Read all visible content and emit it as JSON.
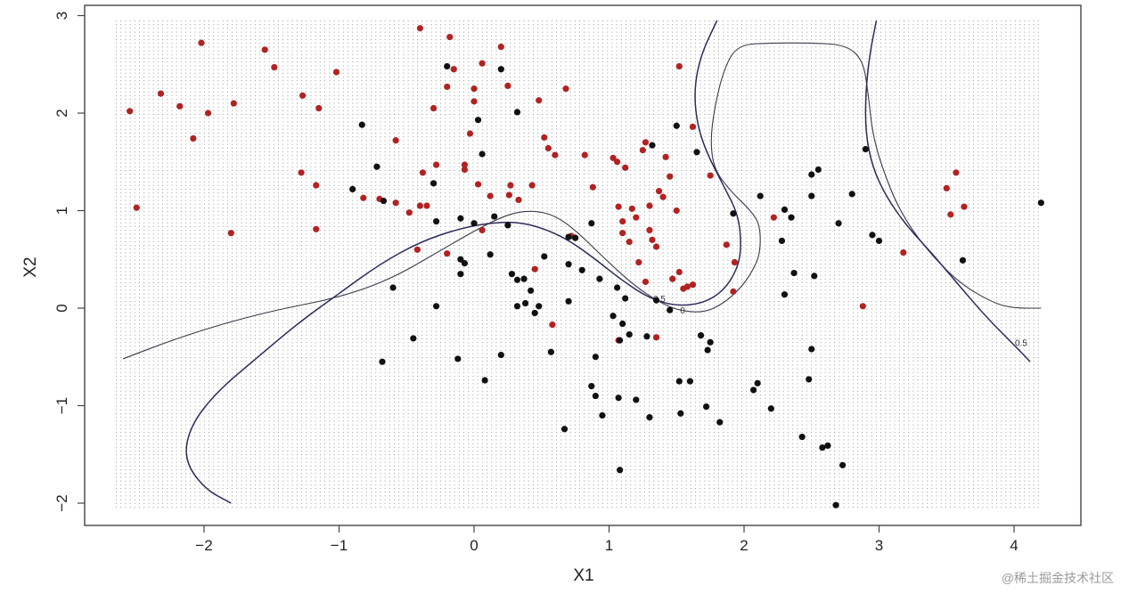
{
  "chart_data": {
    "type": "scatter",
    "title": "",
    "xlabel": "X1",
    "ylabel": "X2",
    "xlim": [
      -2.9,
      4.5
    ],
    "ylim": [
      -2.2,
      3.05
    ],
    "x_ticks": [
      -2,
      -1,
      0,
      1,
      2,
      3,
      4
    ],
    "y_ticks": [
      -2,
      -1,
      0,
      1,
      2,
      3
    ],
    "x_tick_labels": [
      "−2",
      "−1",
      "0",
      "1",
      "2",
      "3",
      "4"
    ],
    "y_tick_labels": [
      "−2",
      "−1",
      "0",
      "1",
      "2",
      "3"
    ],
    "grid": "dotted background grid over x -2.6..4.2, y -2.05..2.95",
    "grid_extent": {
      "x": [
        -2.65,
        4.2
      ],
      "y": [
        -2.05,
        2.95
      ]
    },
    "colors": {
      "class_red": "#b22222",
      "class_black": "#111111",
      "contour_main": "#2b2b5a",
      "contour_secondary": "#3a3a4a",
      "grid_dots": "#9a9a9a"
    },
    "series": [
      {
        "color": "#b22222",
        "points": [
          [
            -2.55,
            2.02
          ],
          [
            -2.5,
            1.03
          ],
          [
            -2.32,
            2.2
          ],
          [
            -2.18,
            2.07
          ],
          [
            -2.08,
            1.74
          ],
          [
            -2.02,
            2.72
          ],
          [
            -1.97,
            2.0
          ],
          [
            -1.8,
            0.77
          ],
          [
            -1.78,
            2.1
          ],
          [
            -1.55,
            2.65
          ],
          [
            -1.48,
            2.47
          ],
          [
            -1.28,
            1.39
          ],
          [
            -1.27,
            2.18
          ],
          [
            -1.17,
            1.26
          ],
          [
            -1.15,
            2.05
          ],
          [
            -1.02,
            2.42
          ],
          [
            -1.17,
            0.81
          ],
          [
            -0.82,
            1.13
          ],
          [
            -0.7,
            1.12
          ],
          [
            -0.58,
            1.72
          ],
          [
            -0.58,
            1.08
          ],
          [
            -0.48,
            0.98
          ],
          [
            -0.42,
            0.6
          ],
          [
            -0.4,
            1.05
          ],
          [
            -0.38,
            1.39
          ],
          [
            -0.35,
            1.05
          ],
          [
            -0.3,
            2.05
          ],
          [
            -0.28,
            1.47
          ],
          [
            -0.4,
            2.87
          ],
          [
            -0.2,
            2.27
          ],
          [
            -0.18,
            2.78
          ],
          [
            -0.15,
            2.45
          ],
          [
            -0.2,
            0.56
          ],
          [
            -0.07,
            1.47
          ],
          [
            -0.07,
            1.42
          ],
          [
            -0.03,
            1.79
          ],
          [
            0.0,
            2.25
          ],
          [
            0.0,
            2.12
          ],
          [
            0.03,
            1.27
          ],
          [
            0.06,
            2.51
          ],
          [
            0.12,
            1.15
          ],
          [
            0.06,
            0.8
          ],
          [
            0.2,
            2.68
          ],
          [
            0.25,
            2.28
          ],
          [
            0.27,
            1.26
          ],
          [
            0.26,
            1.16
          ],
          [
            0.33,
            1.11
          ],
          [
            0.43,
            1.26
          ],
          [
            0.48,
            2.13
          ],
          [
            0.52,
            1.75
          ],
          [
            0.55,
            1.64
          ],
          [
            0.6,
            1.57
          ],
          [
            0.68,
            2.25
          ],
          [
            0.45,
            0.4
          ],
          [
            0.58,
            -0.17
          ],
          [
            0.72,
            0.74
          ],
          [
            0.82,
            1.57
          ],
          [
            0.88,
            1.24
          ],
          [
            1.03,
            1.54
          ],
          [
            1.06,
            1.5
          ],
          [
            1.07,
            1.04
          ],
          [
            1.1,
            0.77
          ],
          [
            1.12,
            1.44
          ],
          [
            1.15,
            0.68
          ],
          [
            1.1,
            0.89
          ],
          [
            1.17,
            1.02
          ],
          [
            1.2,
            0.93
          ],
          [
            1.25,
            1.62
          ],
          [
            1.27,
            1.7
          ],
          [
            1.3,
            1.05
          ],
          [
            1.3,
            0.8
          ],
          [
            1.32,
            0.7
          ],
          [
            1.35,
            0.63
          ],
          [
            1.37,
            1.2
          ],
          [
            1.4,
            1.14
          ],
          [
            1.42,
            1.55
          ],
          [
            1.45,
            1.35
          ],
          [
            1.47,
            0.3
          ],
          [
            1.5,
            1.0
          ],
          [
            1.52,
            2.48
          ],
          [
            1.52,
            0.37
          ],
          [
            1.55,
            0.2
          ],
          [
            1.58,
            0.22
          ],
          [
            1.62,
            0.24
          ],
          [
            1.62,
            1.86
          ],
          [
            1.22,
            0.47
          ],
          [
            1.27,
            0.27
          ],
          [
            1.35,
            -0.3
          ],
          [
            1.07,
            -0.33
          ],
          [
            1.75,
            1.36
          ],
          [
            1.87,
            0.65
          ],
          [
            1.93,
            0.47
          ],
          [
            1.92,
            0.17
          ],
          [
            2.22,
            0.93
          ],
          [
            2.88,
            0.02
          ],
          [
            3.18,
            0.57
          ],
          [
            3.5,
            1.23
          ],
          [
            3.53,
            0.96
          ],
          [
            3.57,
            1.39
          ],
          [
            3.63,
            1.04
          ]
        ]
      },
      {
        "color": "#111111",
        "points": [
          [
            -0.9,
            1.22
          ],
          [
            -0.83,
            1.88
          ],
          [
            -0.72,
            1.45
          ],
          [
            -0.68,
            -0.55
          ],
          [
            -0.67,
            1.1
          ],
          [
            -0.6,
            0.21
          ],
          [
            -0.45,
            -0.31
          ],
          [
            -0.3,
            1.28
          ],
          [
            -0.28,
            0.89
          ],
          [
            -0.28,
            0.02
          ],
          [
            -0.2,
            2.48
          ],
          [
            -0.12,
            -0.52
          ],
          [
            -0.1,
            0.92
          ],
          [
            -0.1,
            0.35
          ],
          [
            -0.1,
            0.5
          ],
          [
            -0.07,
            0.46
          ],
          [
            0.0,
            0.87
          ],
          [
            0.03,
            1.93
          ],
          [
            0.06,
            1.58
          ],
          [
            0.08,
            -0.74
          ],
          [
            0.12,
            0.55
          ],
          [
            0.15,
            0.94
          ],
          [
            0.2,
            -0.48
          ],
          [
            0.2,
            2.45
          ],
          [
            0.25,
            0.85
          ],
          [
            0.28,
            0.35
          ],
          [
            0.32,
            0.29
          ],
          [
            0.32,
            2.01
          ],
          [
            0.32,
            0.02
          ],
          [
            0.37,
            0.3
          ],
          [
            0.38,
            0.05
          ],
          [
            0.42,
            0.18
          ],
          [
            0.45,
            -0.05
          ],
          [
            0.48,
            0.02
          ],
          [
            0.52,
            0.53
          ],
          [
            0.57,
            -0.45
          ],
          [
            0.67,
            -1.24
          ],
          [
            0.7,
            0.73
          ],
          [
            0.7,
            0.45
          ],
          [
            0.7,
            0.07
          ],
          [
            0.75,
            0.72
          ],
          [
            0.8,
            0.39
          ],
          [
            0.87,
            0.87
          ],
          [
            0.87,
            -0.8
          ],
          [
            0.9,
            -0.5
          ],
          [
            0.9,
            -0.9
          ],
          [
            0.93,
            0.3
          ],
          [
            0.95,
            -1.1
          ],
          [
            1.03,
            -0.08
          ],
          [
            1.06,
            0.21
          ],
          [
            1.07,
            -0.92
          ],
          [
            1.08,
            -0.33
          ],
          [
            1.08,
            -1.66
          ],
          [
            1.1,
            -0.16
          ],
          [
            1.12,
            0.1
          ],
          [
            1.15,
            -0.27
          ],
          [
            1.2,
            -0.94
          ],
          [
            1.28,
            -0.29
          ],
          [
            1.3,
            -1.12
          ],
          [
            1.32,
            1.67
          ],
          [
            1.35,
            0.08
          ],
          [
            1.45,
            -0.02
          ],
          [
            1.5,
            1.87
          ],
          [
            1.52,
            -0.75
          ],
          [
            1.53,
            -1.08
          ],
          [
            1.6,
            -0.75
          ],
          [
            1.65,
            1.6
          ],
          [
            1.68,
            -0.28
          ],
          [
            1.72,
            -1.01
          ],
          [
            1.73,
            -0.43
          ],
          [
            1.75,
            -0.35
          ],
          [
            1.82,
            -1.17
          ],
          [
            1.92,
            0.97
          ],
          [
            2.07,
            -0.84
          ],
          [
            2.1,
            -0.77
          ],
          [
            2.12,
            1.15
          ],
          [
            2.2,
            -1.03
          ],
          [
            2.28,
            0.69
          ],
          [
            2.3,
            0.14
          ],
          [
            2.3,
            1.01
          ],
          [
            2.35,
            0.93
          ],
          [
            2.37,
            0.36
          ],
          [
            2.43,
            -1.32
          ],
          [
            2.48,
            -0.73
          ],
          [
            2.5,
            1.37
          ],
          [
            2.5,
            1.15
          ],
          [
            2.52,
            0.33
          ],
          [
            2.5,
            -0.42
          ],
          [
            2.55,
            1.42
          ],
          [
            2.58,
            -1.43
          ],
          [
            2.62,
            -1.41
          ],
          [
            2.68,
            -2.02
          ],
          [
            2.7,
            0.87
          ],
          [
            2.73,
            -1.61
          ],
          [
            2.8,
            1.17
          ],
          [
            2.9,
            1.63
          ],
          [
            2.95,
            0.75
          ],
          [
            3.0,
            0.69
          ],
          [
            3.62,
            0.49
          ],
          [
            4.2,
            1.08
          ]
        ]
      }
    ],
    "contours": [
      {
        "label": "0",
        "points": [
          [
            -2.6,
            -0.52
          ],
          [
            -2.3,
            -0.36
          ],
          [
            -2.0,
            -0.22
          ],
          [
            -1.7,
            -0.1
          ],
          [
            -1.4,
            0.0
          ],
          [
            -1.1,
            0.08
          ],
          [
            -0.8,
            0.2
          ],
          [
            -0.55,
            0.35
          ],
          [
            -0.3,
            0.55
          ],
          [
            -0.05,
            0.75
          ],
          [
            0.15,
            0.9
          ],
          [
            0.3,
            0.98
          ],
          [
            0.45,
            1.0
          ],
          [
            0.6,
            0.95
          ],
          [
            0.75,
            0.8
          ],
          [
            0.9,
            0.6
          ],
          [
            1.05,
            0.4
          ],
          [
            1.2,
            0.22
          ],
          [
            1.35,
            0.08
          ],
          [
            1.5,
            -0.02
          ],
          [
            1.7,
            -0.05
          ],
          [
            1.85,
            0.05
          ],
          [
            1.97,
            0.2
          ],
          [
            2.05,
            0.35
          ],
          [
            2.12,
            0.55
          ],
          [
            2.12,
            0.85
          ],
          [
            2.05,
            1.0
          ],
          [
            1.9,
            1.2
          ],
          [
            1.78,
            1.42
          ],
          [
            1.75,
            1.7
          ],
          [
            1.78,
            2.05
          ],
          [
            1.85,
            2.45
          ],
          [
            1.95,
            2.7
          ],
          [
            2.2,
            2.72
          ],
          [
            2.5,
            2.72
          ],
          [
            2.75,
            2.7
          ],
          [
            2.88,
            2.55
          ],
          [
            2.92,
            2.2
          ],
          [
            2.95,
            1.8
          ],
          [
            3.02,
            1.45
          ],
          [
            3.15,
            1.0
          ],
          [
            3.35,
            0.6
          ],
          [
            3.6,
            0.25
          ],
          [
            3.85,
            0.05
          ],
          [
            4.0,
            0.0
          ],
          [
            4.2,
            0.0
          ]
        ]
      },
      {
        "label": "0.5",
        "points": [
          [
            -1.8,
            -2.0
          ],
          [
            -2.0,
            -1.85
          ],
          [
            -2.15,
            -1.55
          ],
          [
            -2.1,
            -1.2
          ],
          [
            -1.9,
            -0.85
          ],
          [
            -1.6,
            -0.5
          ],
          [
            -1.3,
            -0.15
          ],
          [
            -1.0,
            0.15
          ],
          [
            -0.7,
            0.45
          ],
          [
            -0.4,
            0.68
          ],
          [
            -0.1,
            0.82
          ],
          [
            0.15,
            0.88
          ],
          [
            0.35,
            0.88
          ],
          [
            0.55,
            0.8
          ],
          [
            0.72,
            0.68
          ],
          [
            0.9,
            0.5
          ],
          [
            1.1,
            0.28
          ],
          [
            1.3,
            0.1
          ],
          [
            1.5,
            0.02
          ],
          [
            1.7,
            0.05
          ],
          [
            1.85,
            0.18
          ],
          [
            1.95,
            0.4
          ],
          [
            1.98,
            0.62
          ],
          [
            1.96,
            0.95
          ],
          [
            1.85,
            1.25
          ],
          [
            1.72,
            1.6
          ],
          [
            1.65,
            1.9
          ],
          [
            1.63,
            2.25
          ],
          [
            1.68,
            2.6
          ],
          [
            1.8,
            2.95
          ]
        ]
      },
      {
        "label": "0.5",
        "points": [
          [
            2.98,
            2.95
          ],
          [
            2.93,
            2.6
          ],
          [
            2.9,
            2.2
          ],
          [
            2.9,
            1.8
          ],
          [
            2.95,
            1.45
          ],
          [
            3.05,
            1.15
          ],
          [
            3.2,
            0.85
          ],
          [
            3.4,
            0.55
          ],
          [
            3.6,
            0.22
          ],
          [
            3.8,
            -0.1
          ],
          [
            3.98,
            -0.35
          ],
          [
            4.12,
            -0.55
          ]
        ]
      }
    ]
  },
  "watermark": "@稀土掘金技术社区"
}
